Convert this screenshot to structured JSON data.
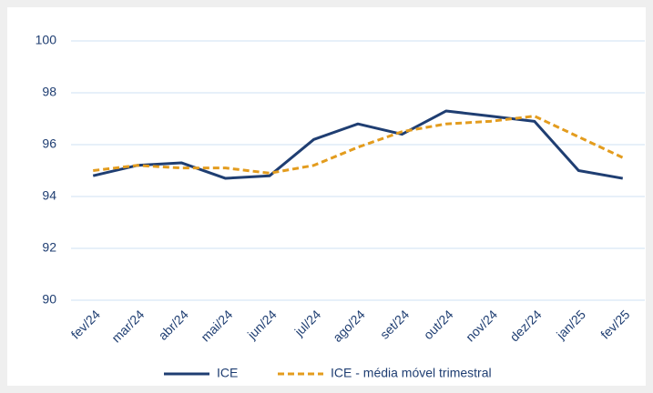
{
  "chart_data": {
    "type": "line",
    "categories": [
      "fev/24",
      "mar/24",
      "abr/24",
      "mai/24",
      "jun/24",
      "jul/24",
      "ago/24",
      "set/24",
      "out/24",
      "nov/24",
      "dez/24",
      "jan/25",
      "fev/25"
    ],
    "series": [
      {
        "name": "ICE",
        "color": "#1f3e72",
        "dashed": false,
        "values": [
          94.8,
          95.2,
          95.3,
          94.7,
          94.8,
          96.2,
          96.8,
          96.4,
          97.3,
          97.1,
          96.9,
          95.0,
          94.7
        ]
      },
      {
        "name": "ICE - média móvel trimestral",
        "color": "#e39c1e",
        "dashed": true,
        "values": [
          95.0,
          95.2,
          95.1,
          95.1,
          94.9,
          95.2,
          95.9,
          96.5,
          96.8,
          96.9,
          97.1,
          96.3,
          95.5
        ]
      }
    ],
    "ylim": [
      90,
      100
    ],
    "yticks": [
      90,
      92,
      94,
      96,
      98,
      100
    ],
    "grid": true,
    "legend": "bottom"
  }
}
